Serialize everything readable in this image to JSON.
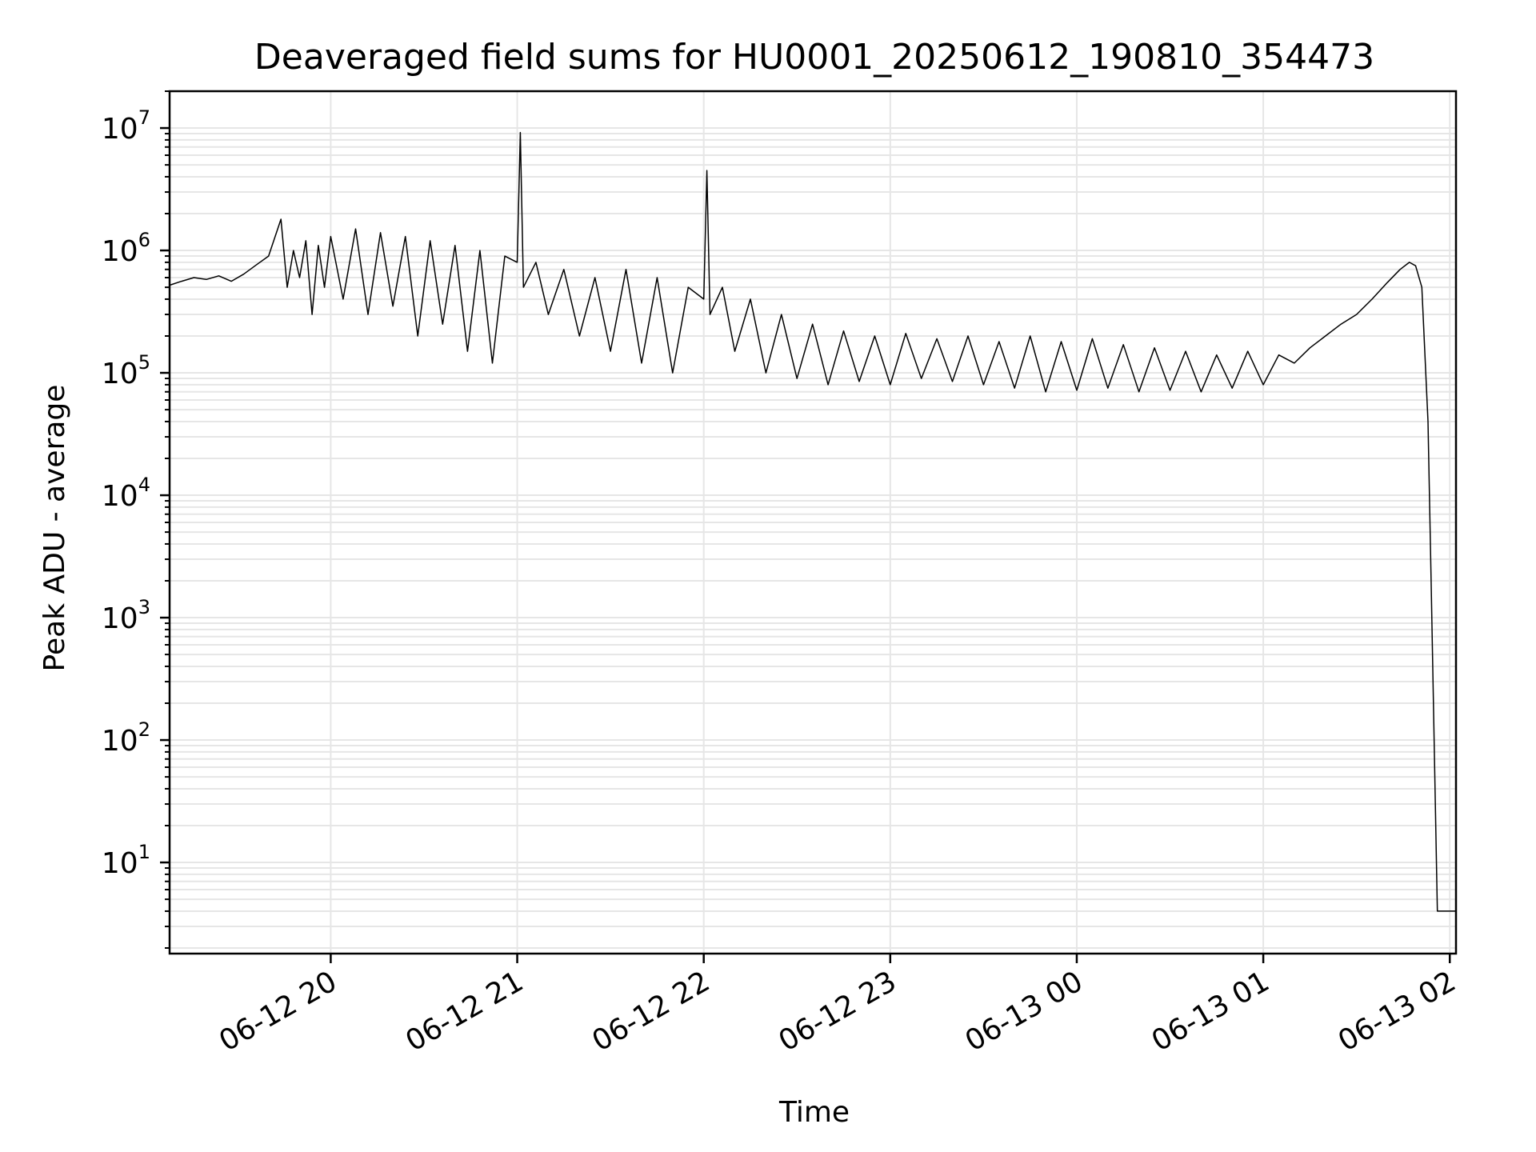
{
  "chart_data": {
    "type": "line",
    "title": "Deaveraged field sums for HU0001_20250612_190810_354473",
    "xlabel": "Time",
    "ylabel": "Peak ADU - average",
    "x_scale": "time",
    "y_scale": "log",
    "xlim": [
      "2025-06-12 19:08:10",
      "2025-06-13 02:02:00"
    ],
    "ylim": [
      1.8,
      20000000
    ],
    "grid": {
      "major": true,
      "minor": true,
      "color": "#e6e6e6"
    },
    "line_color": "#000000",
    "x_ticks": [
      {
        "value": "2025-06-12 20:00:00",
        "label": "06-12 20"
      },
      {
        "value": "2025-06-12 21:00:00",
        "label": "06-12 21"
      },
      {
        "value": "2025-06-12 22:00:00",
        "label": "06-12 22"
      },
      {
        "value": "2025-06-12 23:00:00",
        "label": "06-12 23"
      },
      {
        "value": "2025-06-13 00:00:00",
        "label": "06-13 00"
      },
      {
        "value": "2025-06-13 01:00:00",
        "label": "06-13 01"
      },
      {
        "value": "2025-06-13 02:00:00",
        "label": "06-13 02"
      }
    ],
    "y_ticks": [
      {
        "value": 10,
        "base": "10",
        "exp": "1"
      },
      {
        "value": 100,
        "base": "10",
        "exp": "2"
      },
      {
        "value": 1000,
        "base": "10",
        "exp": "3"
      },
      {
        "value": 10000,
        "base": "10",
        "exp": "4"
      },
      {
        "value": 100000,
        "base": "10",
        "exp": "5"
      },
      {
        "value": 1000000,
        "base": "10",
        "exp": "6"
      },
      {
        "value": 10000000,
        "base": "10",
        "exp": "7"
      }
    ],
    "series": [
      {
        "x": [
          "2025-06-12 19:08:10",
          "2025-06-12 19:12:00",
          "2025-06-12 19:16:00",
          "2025-06-12 19:20:00",
          "2025-06-12 19:24:00",
          "2025-06-12 19:28:00",
          "2025-06-12 19:32:00",
          "2025-06-12 19:36:00",
          "2025-06-12 19:40:00",
          "2025-06-12 19:44:00",
          "2025-06-12 19:46:00",
          "2025-06-12 19:48:00",
          "2025-06-12 19:50:00",
          "2025-06-12 19:52:00",
          "2025-06-12 19:54:00",
          "2025-06-12 19:56:00",
          "2025-06-12 19:58:00",
          "2025-06-12 20:00:00",
          "2025-06-12 20:04:00",
          "2025-06-12 20:08:00",
          "2025-06-12 20:12:00",
          "2025-06-12 20:16:00",
          "2025-06-12 20:20:00",
          "2025-06-12 20:24:00",
          "2025-06-12 20:28:00",
          "2025-06-12 20:32:00",
          "2025-06-12 20:36:00",
          "2025-06-12 20:40:00",
          "2025-06-12 20:44:00",
          "2025-06-12 20:48:00",
          "2025-06-12 20:52:00",
          "2025-06-12 20:56:00",
          "2025-06-12 21:00:00",
          "2025-06-12 21:01:00",
          "2025-06-12 21:02:00",
          "2025-06-12 21:06:00",
          "2025-06-12 21:10:00",
          "2025-06-12 21:15:00",
          "2025-06-12 21:20:00",
          "2025-06-12 21:25:00",
          "2025-06-12 21:30:00",
          "2025-06-12 21:35:00",
          "2025-06-12 21:40:00",
          "2025-06-12 21:45:00",
          "2025-06-12 21:50:00",
          "2025-06-12 21:55:00",
          "2025-06-12 22:00:00",
          "2025-06-12 22:01:00",
          "2025-06-12 22:02:00",
          "2025-06-12 22:06:00",
          "2025-06-12 22:10:00",
          "2025-06-12 22:15:00",
          "2025-06-12 22:20:00",
          "2025-06-12 22:25:00",
          "2025-06-12 22:30:00",
          "2025-06-12 22:35:00",
          "2025-06-12 22:40:00",
          "2025-06-12 22:45:00",
          "2025-06-12 22:50:00",
          "2025-06-12 22:55:00",
          "2025-06-12 23:00:00",
          "2025-06-12 23:05:00",
          "2025-06-12 23:10:00",
          "2025-06-12 23:15:00",
          "2025-06-12 23:20:00",
          "2025-06-12 23:25:00",
          "2025-06-12 23:30:00",
          "2025-06-12 23:35:00",
          "2025-06-12 23:40:00",
          "2025-06-12 23:45:00",
          "2025-06-12 23:50:00",
          "2025-06-12 23:55:00",
          "2025-06-13 00:00:00",
          "2025-06-13 00:05:00",
          "2025-06-13 00:10:00",
          "2025-06-13 00:15:00",
          "2025-06-13 00:20:00",
          "2025-06-13 00:25:00",
          "2025-06-13 00:30:00",
          "2025-06-13 00:35:00",
          "2025-06-13 00:40:00",
          "2025-06-13 00:45:00",
          "2025-06-13 00:50:00",
          "2025-06-13 00:55:00",
          "2025-06-13 01:00:00",
          "2025-06-13 01:05:00",
          "2025-06-13 01:10:00",
          "2025-06-13 01:15:00",
          "2025-06-13 01:20:00",
          "2025-06-13 01:25:00",
          "2025-06-13 01:30:00",
          "2025-06-13 01:35:00",
          "2025-06-13 01:40:00",
          "2025-06-13 01:44:00",
          "2025-06-13 01:47:00",
          "2025-06-13 01:49:00",
          "2025-06-13 01:51:00",
          "2025-06-13 01:53:00",
          "2025-06-13 01:54:00",
          "2025-06-13 01:56:00",
          "2025-06-13 01:58:00",
          "2025-06-13 02:02:00"
        ],
        "y": [
          520000,
          560000,
          600000,
          580000,
          620000,
          560000,
          640000,
          760000,
          900000,
          1800000,
          500000,
          1000000,
          600000,
          1200000,
          300000,
          1100000,
          500000,
          1300000,
          400000,
          1500000,
          300000,
          1400000,
          350000,
          1300000,
          200000,
          1200000,
          250000,
          1100000,
          150000,
          1000000,
          120000,
          900000,
          800000,
          9200000,
          500000,
          800000,
          300000,
          700000,
          200000,
          600000,
          150000,
          700000,
          120000,
          600000,
          100000,
          500000,
          400000,
          4500000,
          300000,
          500000,
          150000,
          400000,
          100000,
          300000,
          90000,
          250000,
          80000,
          220000,
          85000,
          200000,
          80000,
          210000,
          90000,
          190000,
          85000,
          200000,
          80000,
          180000,
          75000,
          200000,
          70000,
          180000,
          72000,
          190000,
          75000,
          170000,
          70000,
          160000,
          72000,
          150000,
          70000,
          140000,
          75000,
          150000,
          80000,
          140000,
          120000,
          160000,
          200000,
          250000,
          300000,
          400000,
          550000,
          700000,
          800000,
          750000,
          500000,
          40000,
          2000,
          4,
          4,
          4
        ]
      }
    ]
  }
}
